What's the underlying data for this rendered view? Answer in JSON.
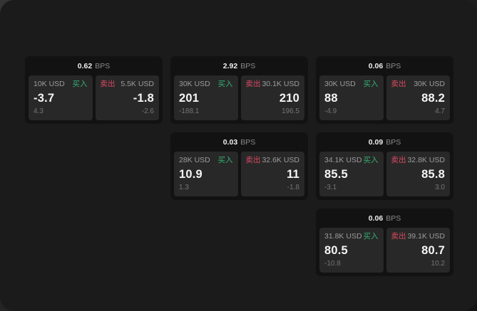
{
  "theme": {
    "window_bg": "#1b1b1b",
    "card_bg": "#121212",
    "panel_bg": "#282828",
    "buy_color": "#36ae73",
    "sell_color": "#db4a63",
    "price_color": "#f5f5f5",
    "muted_color": "#9c9c9c"
  },
  "cards": [
    {
      "row": 1,
      "col": 1,
      "bps_value": "0.62",
      "bps_unit": "BPS",
      "buy": {
        "size": "10K USD",
        "label": "买入",
        "price": "-3.7",
        "delta": "4.3"
      },
      "sell": {
        "size": "5.5K USD",
        "label": "卖出",
        "price": "-1.8",
        "delta": "-2.6"
      }
    },
    {
      "row": 1,
      "col": 2,
      "bps_value": "2.92",
      "bps_unit": "BPS",
      "buy": {
        "size": "30K USD",
        "label": "买入",
        "price": "201",
        "delta": "-188.1"
      },
      "sell": {
        "size": "30.1K USD",
        "label": "卖出",
        "price": "210",
        "delta": "196.5"
      }
    },
    {
      "row": 1,
      "col": 3,
      "bps_value": "0.06",
      "bps_unit": "BPS",
      "buy": {
        "size": "30K USD",
        "label": "买入",
        "price": "88",
        "delta": "-4.9"
      },
      "sell": {
        "size": "30K USD",
        "label": "卖出",
        "price": "88.2",
        "delta": "4.7"
      }
    },
    {
      "row": 2,
      "col": 2,
      "bps_value": "0.03",
      "bps_unit": "BPS",
      "buy": {
        "size": "28K USD",
        "label": "买入",
        "price": "10.9",
        "delta": "1.3"
      },
      "sell": {
        "size": "32.6K USD",
        "label": "卖出",
        "price": "11",
        "delta": "-1.8"
      }
    },
    {
      "row": 2,
      "col": 3,
      "bps_value": "0.09",
      "bps_unit": "BPS",
      "buy": {
        "size": "34.1K USD",
        "label": "买入",
        "price": "85.5",
        "delta": "-3.1"
      },
      "sell": {
        "size": "32.8K USD",
        "label": "卖出",
        "price": "85.8",
        "delta": "3.0"
      }
    },
    {
      "row": 3,
      "col": 3,
      "bps_value": "0.06",
      "bps_unit": "BPS",
      "buy": {
        "size": "31.8K USD",
        "label": "买入",
        "price": "80.5",
        "delta": "-10.8"
      },
      "sell": {
        "size": "39.1K USD",
        "label": "卖出",
        "price": "80.7",
        "delta": "10.2"
      }
    }
  ]
}
